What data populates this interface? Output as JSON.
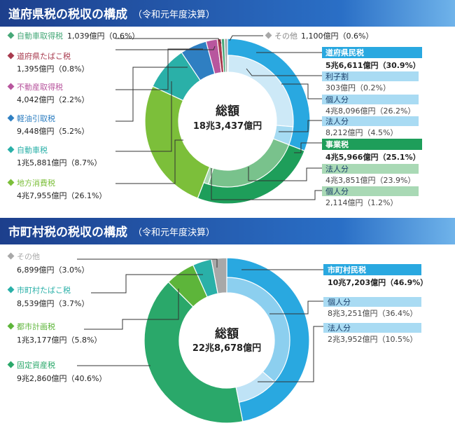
{
  "prefecture": {
    "header_title": "道府県税の税収の構成",
    "header_sub": "（令和元年度決算）",
    "center_title": "総額",
    "center_total": "18兆3,437億円",
    "left_labels": [
      {
        "name": "自動車取得税",
        "value": "1,039億円（0.6%）",
        "color": "#46a878"
      },
      {
        "name": "道府県たばこ税",
        "value": "1,395億円（0.8%）",
        "color": "#a83a4e"
      },
      {
        "name": "不動産取得税",
        "value": "4,042億円（2.2%）",
        "color": "#b8569e"
      },
      {
        "name": "軽油引取税",
        "value": "9,448億円（5.2%）",
        "color": "#2f7fc2"
      },
      {
        "name": "自動車税",
        "value": "1兆5,881億円（8.7%）",
        "color": "#2ab0a8"
      },
      {
        "name": "地方消費税",
        "value": "4兆7,955億円（26.1%）",
        "color": "#7cbf3a"
      }
    ],
    "other": {
      "name": "その他",
      "value": "1,100億円（0.6%）",
      "color": "#a8a8a8"
    },
    "right_labels": [
      {
        "name": "道府県民税",
        "value": "5兆6,611億円（30.9%）",
        "style": "main",
        "color": "#29a8e0"
      },
      {
        "name": "利子割",
        "value": "303億円（0.2%）",
        "style": "sub",
        "color": "#8ccfef"
      },
      {
        "name": "個人分",
        "value": "4兆8,096億円（26.2%）",
        "style": "sub",
        "color": "#8ccfef"
      },
      {
        "name": "法人分",
        "value": "8,212億円（4.5%）",
        "style": "sub",
        "color": "#8ccfef"
      },
      {
        "name": "事業税",
        "value": "4兆5,966億円（25.1%）",
        "style": "main",
        "color": "#1e9e5a"
      },
      {
        "name": "法人分",
        "value": "4兆3,851億円（23.9%）",
        "style": "sub",
        "color": "#8ccc9c"
      },
      {
        "name": "個人分",
        "value": "2,114億円（1.2%）",
        "style": "sub",
        "color": "#8ccc9c"
      }
    ]
  },
  "municipal": {
    "header_title": "市町村税の税収の構成",
    "header_sub": "（令和元年度決算）",
    "center_title": "総額",
    "center_total": "22兆8,678億円",
    "left_labels": [
      {
        "name": "その他",
        "value": "6,899億円（3.0%）",
        "color": "#a8a8a8"
      },
      {
        "name": "市町村たばこ税",
        "value": "8,539億円（3.7%）",
        "color": "#2ab0a8"
      },
      {
        "name": "都市計画税",
        "value": "1兆3,177億円（5.8%）",
        "color": "#5db53a"
      },
      {
        "name": "固定資産税",
        "value": "9兆2,860億円（40.6%）",
        "color": "#2aa86a"
      }
    ],
    "right_labels": [
      {
        "name": "市町村民税",
        "value": "10兆7,203億円（46.9%）",
        "style": "main",
        "color": "#29a8e0"
      },
      {
        "name": "個人分",
        "value": "8兆3,251億円（36.4%）",
        "style": "sub",
        "color": "#8ccfef"
      },
      {
        "name": "法人分",
        "value": "2兆3,952億円（10.5%）",
        "style": "sub",
        "color": "#8ccfef"
      }
    ]
  },
  "chart_data": [
    {
      "type": "pie",
      "title": "道府県税の税収の構成",
      "total": "18兆3,437億円",
      "slices": [
        {
          "label": "道府県民税",
          "value": 30.9,
          "color": "#29a8e0"
        },
        {
          "label": "事業税",
          "value": 25.1,
          "color": "#1e9e5a"
        },
        {
          "label": "地方消費税",
          "value": 26.1,
          "color": "#7cbf3a"
        },
        {
          "label": "自動車税",
          "value": 8.7,
          "color": "#2ab0a8"
        },
        {
          "label": "軽油引取税",
          "value": 5.2,
          "color": "#2f7fc2"
        },
        {
          "label": "不動産取得税",
          "value": 2.2,
          "color": "#b8569e"
        },
        {
          "label": "道府県たばこ税",
          "value": 0.8,
          "color": "#a83a4e"
        },
        {
          "label": "自動車取得税",
          "value": 0.6,
          "color": "#46a878"
        },
        {
          "label": "その他",
          "value": 0.6,
          "color": "#a8a8a8"
        }
      ],
      "inner_slices": [
        {
          "label": "利子割",
          "value": 0.2,
          "color": "#cde9f7"
        },
        {
          "label": "個人分",
          "value": 26.2,
          "color": "#cde9f7"
        },
        {
          "label": "法人分",
          "value": 4.5,
          "color": "#a6dbf2"
        },
        {
          "label": "法人分",
          "value": 23.9,
          "color": "#79c28c"
        },
        {
          "label": "個人分",
          "value": 1.2,
          "color": "#a8d8b2"
        }
      ]
    },
    {
      "type": "pie",
      "title": "市町村税の税収の構成",
      "total": "22兆8,678億円",
      "slices": [
        {
          "label": "市町村民税",
          "value": 46.9,
          "color": "#29a8e0"
        },
        {
          "label": "固定資産税",
          "value": 40.6,
          "color": "#2aa86a"
        },
        {
          "label": "都市計画税",
          "value": 5.8,
          "color": "#5db53a"
        },
        {
          "label": "市町村たばこ税",
          "value": 3.7,
          "color": "#2ab0a8"
        },
        {
          "label": "その他",
          "value": 3.0,
          "color": "#a8a8a8"
        }
      ],
      "inner_slices": [
        {
          "label": "個人分",
          "value": 36.4,
          "color": "#8ccfef"
        },
        {
          "label": "法人分",
          "value": 10.5,
          "color": "#bfe3f6"
        }
      ]
    }
  ]
}
